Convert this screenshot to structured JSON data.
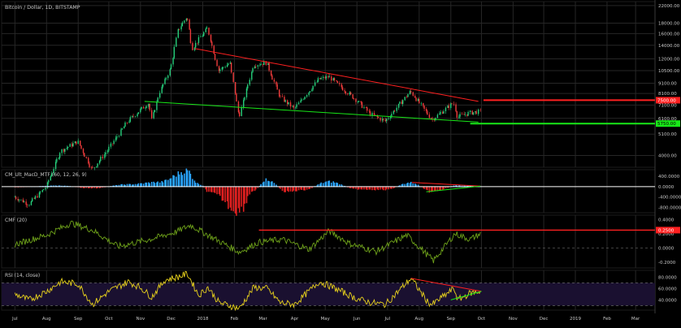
{
  "chart_data": [
    {
      "type": "candlestick",
      "title": "Bitcoin / Dollar, 1D, BITSTAMP",
      "y_scale": "log",
      "ylim": [
        3500,
        23000
      ],
      "y_ticks": [
        "22000.00",
        "18000.00",
        "16000.00",
        "14000.00",
        "12000.00",
        "10500.00",
        "9100.00",
        "8100.00",
        "7100.00",
        "6100.00",
        "5100.00",
        "4000.00"
      ],
      "price_series": [
        {
          "date": "2017-07-01",
          "value": 2500
        },
        {
          "date": "2017-07-15",
          "value": 2300
        },
        {
          "date": "2017-08-01",
          "value": 2800
        },
        {
          "date": "2017-08-15",
          "value": 4200
        },
        {
          "date": "2017-09-01",
          "value": 4700
        },
        {
          "date": "2017-09-15",
          "value": 3400
        },
        {
          "date": "2017-10-01",
          "value": 4300
        },
        {
          "date": "2017-10-20",
          "value": 5900
        },
        {
          "date": "2017-11-01",
          "value": 6700
        },
        {
          "date": "2017-11-10",
          "value": 7300
        },
        {
          "date": "2017-11-12",
          "value": 5900
        },
        {
          "date": "2017-11-20",
          "value": 8200
        },
        {
          "date": "2017-12-01",
          "value": 10800
        },
        {
          "date": "2017-12-08",
          "value": 16500
        },
        {
          "date": "2017-12-17",
          "value": 19500
        },
        {
          "date": "2017-12-22",
          "value": 13500
        },
        {
          "date": "2018-01-06",
          "value": 17000
        },
        {
          "date": "2018-01-17",
          "value": 10500
        },
        {
          "date": "2018-01-28",
          "value": 11500
        },
        {
          "date": "2018-02-06",
          "value": 6200
        },
        {
          "date": "2018-02-20",
          "value": 11200
        },
        {
          "date": "2018-03-05",
          "value": 11500
        },
        {
          "date": "2018-03-18",
          "value": 7800
        },
        {
          "date": "2018-04-01",
          "value": 6800
        },
        {
          "date": "2018-04-25",
          "value": 9500
        },
        {
          "date": "2018-05-05",
          "value": 9800
        },
        {
          "date": "2018-06-01",
          "value": 7500
        },
        {
          "date": "2018-06-15",
          "value": 6400
        },
        {
          "date": "2018-06-29",
          "value": 5900
        },
        {
          "date": "2018-07-24",
          "value": 8300
        },
        {
          "date": "2018-08-10",
          "value": 6400
        },
        {
          "date": "2018-08-14",
          "value": 6000
        },
        {
          "date": "2018-09-04",
          "value": 7300
        },
        {
          "date": "2018-09-08",
          "value": 6200
        },
        {
          "date": "2018-09-20",
          "value": 6500
        },
        {
          "date": "2018-09-30",
          "value": 6600
        }
      ],
      "upper_trendline": [
        {
          "date": "2017-12-24",
          "value": 13500
        },
        {
          "date": "2018-09-28",
          "value": 7400
        }
      ],
      "lower_trendline": [
        {
          "date": "2017-11-05",
          "value": 7400
        },
        {
          "date": "2018-09-28",
          "value": 5850
        }
      ],
      "horizontal_lines": [
        {
          "label": "7500.00",
          "value": 7500,
          "color": "#ff2020"
        },
        {
          "label": "5750.00",
          "value": 5750,
          "color": "#18e818"
        }
      ]
    },
    {
      "type": "histogram",
      "title": "CM_Ult_MacD_MTF (60, 12, 26, 9)",
      "ylim": [
        -1000,
        650
      ],
      "y_ticks": [
        "400.0000",
        "0.0000",
        "-400.0000",
        "-800.0000"
      ],
      "series": [
        {
          "date": "2017-07-01",
          "value": -15
        },
        {
          "date": "2017-08-15",
          "value": 40
        },
        {
          "date": "2017-09-15",
          "value": -60
        },
        {
          "date": "2017-10-20",
          "value": 90
        },
        {
          "date": "2017-11-20",
          "value": 180
        },
        {
          "date": "2017-12-17",
          "value": 620
        },
        {
          "date": "2017-12-28",
          "value": 120
        },
        {
          "date": "2018-01-10",
          "value": -250
        },
        {
          "date": "2018-02-06",
          "value": -950
        },
        {
          "date": "2018-02-20",
          "value": -150
        },
        {
          "date": "2018-03-05",
          "value": 280
        },
        {
          "date": "2018-03-25",
          "value": -200
        },
        {
          "date": "2018-04-10",
          "value": -120
        },
        {
          "date": "2018-05-05",
          "value": 200
        },
        {
          "date": "2018-06-01",
          "value": -90
        },
        {
          "date": "2018-06-29",
          "value": -120
        },
        {
          "date": "2018-07-24",
          "value": 160
        },
        {
          "date": "2018-08-14",
          "value": -200
        },
        {
          "date": "2018-09-08",
          "value": 50
        },
        {
          "date": "2018-09-30",
          "value": 20
        }
      ],
      "trendlines": [
        {
          "color": "#ff2020",
          "points": [
            {
              "date": "2018-07-25",
              "value": 160
            },
            {
              "date": "2018-09-30",
              "value": 20
            }
          ]
        },
        {
          "color": "#18e818",
          "points": [
            {
              "date": "2018-08-08",
              "value": -200
            },
            {
              "date": "2018-09-30",
              "value": 20
            }
          ]
        }
      ]
    },
    {
      "type": "line",
      "title": "CMF (20)",
      "ylim": [
        -0.28,
        0.46
      ],
      "y_ticks": [
        "0.4000",
        "0.2000",
        "0.0000",
        "-0.2000"
      ],
      "series": [
        {
          "date": "2017-07-01",
          "value": 0.05
        },
        {
          "date": "2017-08-01",
          "value": 0.18
        },
        {
          "date": "2017-08-25",
          "value": 0.35
        },
        {
          "date": "2017-09-15",
          "value": 0.25
        },
        {
          "date": "2017-10-10",
          "value": 0.02
        },
        {
          "date": "2017-11-10",
          "value": 0.12
        },
        {
          "date": "2017-12-05",
          "value": 0.22
        },
        {
          "date": "2017-12-20",
          "value": 0.32
        },
        {
          "date": "2018-01-10",
          "value": 0.15
        },
        {
          "date": "2018-02-06",
          "value": -0.06
        },
        {
          "date": "2018-02-25",
          "value": 0.08
        },
        {
          "date": "2018-03-20",
          "value": 0.12
        },
        {
          "date": "2018-04-15",
          "value": -0.02
        },
        {
          "date": "2018-05-05",
          "value": 0.24
        },
        {
          "date": "2018-05-25",
          "value": 0.06
        },
        {
          "date": "2018-06-20",
          "value": -0.05
        },
        {
          "date": "2018-07-20",
          "value": 0.18
        },
        {
          "date": "2018-08-15",
          "value": -0.18
        },
        {
          "date": "2018-09-05",
          "value": 0.2
        },
        {
          "date": "2018-09-20",
          "value": 0.12
        },
        {
          "date": "2018-09-30",
          "value": 0.2
        }
      ],
      "horizontal_lines": [
        {
          "label": "0.2500",
          "value": 0.25,
          "color": "#ff2020"
        }
      ],
      "reference_lines": [
        0
      ]
    },
    {
      "type": "line",
      "title": "RSI (14, close)",
      "ylim": [
        22,
        92
      ],
      "y_ticks": [
        "80.0000",
        "60.0000",
        "40.0000"
      ],
      "band": [
        30,
        70
      ],
      "series": [
        {
          "date": "2017-07-01",
          "value": 50
        },
        {
          "date": "2017-07-15",
          "value": 40
        },
        {
          "date": "2017-08-01",
          "value": 55
        },
        {
          "date": "2017-08-15",
          "value": 72
        },
        {
          "date": "2017-09-01",
          "value": 68
        },
        {
          "date": "2017-09-15",
          "value": 32
        },
        {
          "date": "2017-10-01",
          "value": 55
        },
        {
          "date": "2017-10-20",
          "value": 72
        },
        {
          "date": "2017-11-01",
          "value": 62
        },
        {
          "date": "2017-11-12",
          "value": 45
        },
        {
          "date": "2017-11-25",
          "value": 75
        },
        {
          "date": "2017-12-07",
          "value": 80
        },
        {
          "date": "2017-12-17",
          "value": 86
        },
        {
          "date": "2017-12-28",
          "value": 48
        },
        {
          "date": "2018-01-06",
          "value": 62
        },
        {
          "date": "2018-01-17",
          "value": 35
        },
        {
          "date": "2018-02-06",
          "value": 25
        },
        {
          "date": "2018-02-20",
          "value": 62
        },
        {
          "date": "2018-03-05",
          "value": 60
        },
        {
          "date": "2018-03-18",
          "value": 35
        },
        {
          "date": "2018-04-01",
          "value": 32
        },
        {
          "date": "2018-04-25",
          "value": 72
        },
        {
          "date": "2018-05-05",
          "value": 65
        },
        {
          "date": "2018-06-01",
          "value": 42
        },
        {
          "date": "2018-06-15",
          "value": 35
        },
        {
          "date": "2018-06-29",
          "value": 32
        },
        {
          "date": "2018-07-24",
          "value": 78
        },
        {
          "date": "2018-08-10",
          "value": 35
        },
        {
          "date": "2018-08-14",
          "value": 32
        },
        {
          "date": "2018-09-04",
          "value": 60
        },
        {
          "date": "2018-09-08",
          "value": 40
        },
        {
          "date": "2018-09-20",
          "value": 52
        },
        {
          "date": "2018-09-30",
          "value": 55
        }
      ],
      "trendlines": [
        {
          "color": "#ff2020",
          "points": [
            {
              "date": "2018-07-24",
              "value": 78
            },
            {
              "date": "2018-10-01",
              "value": 55
            }
          ]
        },
        {
          "color": "#18e818",
          "points": [
            {
              "date": "2018-09-01",
              "value": 40
            },
            {
              "date": "2018-10-01",
              "value": 55
            }
          ]
        }
      ]
    }
  ],
  "x_axis": {
    "range": [
      "2017-06-18",
      "2019-03-20"
    ],
    "ticks": [
      {
        "label": "Jul",
        "date": "2017-07-01"
      },
      {
        "label": "Aug",
        "date": "2017-08-01"
      },
      {
        "label": "Sep",
        "date": "2017-09-01"
      },
      {
        "label": "Oct",
        "date": "2017-10-01"
      },
      {
        "label": "Nov",
        "date": "2017-11-01"
      },
      {
        "label": "Dec",
        "date": "2017-12-01"
      },
      {
        "label": "2018",
        "date": "2018-01-01"
      },
      {
        "label": "Feb",
        "date": "2018-02-01"
      },
      {
        "label": "Mar",
        "date": "2018-03-01"
      },
      {
        "label": "Apr",
        "date": "2018-04-01"
      },
      {
        "label": "May",
        "date": "2018-05-01"
      },
      {
        "label": "Jun",
        "date": "2018-06-01"
      },
      {
        "label": "Jul",
        "date": "2018-07-01"
      },
      {
        "label": "Aug",
        "date": "2018-08-01"
      },
      {
        "label": "Sep",
        "date": "2018-09-01"
      },
      {
        "label": "Oct",
        "date": "2018-10-01"
      },
      {
        "label": "Nov",
        "date": "2018-11-01"
      },
      {
        "label": "Dec",
        "date": "2018-12-01"
      },
      {
        "label": "2019",
        "date": "2019-01-01"
      },
      {
        "label": "Feb",
        "date": "2019-02-01"
      },
      {
        "label": "Mar",
        "date": "2019-03-01"
      }
    ]
  },
  "colors": {
    "background": "#000000",
    "up_candle": "#26d07c",
    "down_candle": "#ef3b3b",
    "macd_up": "#2aa6ff",
    "macd_down": "#e02020",
    "cmf_line": "#6fa31a",
    "rsi_line": "#e8d21c",
    "rsi_band": "#1a1030",
    "trend_red": "#ff2020",
    "trend_green": "#18e818",
    "text": "#c8c8c8",
    "grid": "#262626"
  }
}
